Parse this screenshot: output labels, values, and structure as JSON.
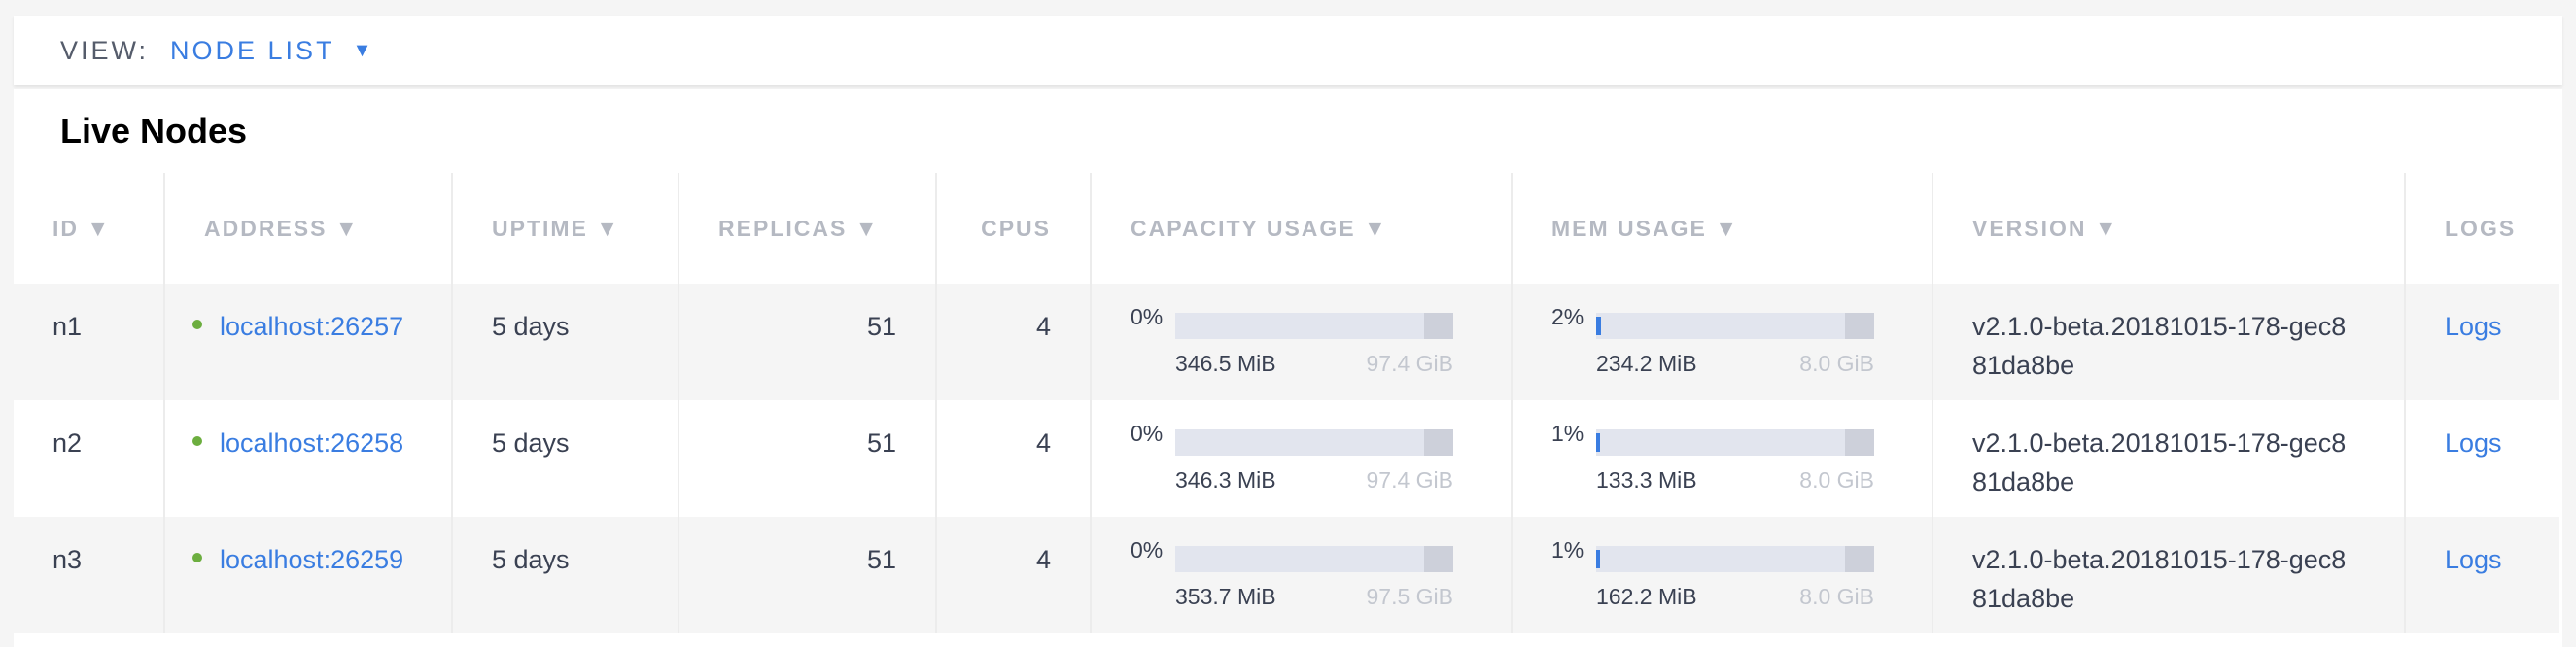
{
  "view": {
    "label": "VIEW:",
    "selected": "NODE LIST"
  },
  "section_title": "Live Nodes",
  "columns": [
    "ID",
    "ADDRESS",
    "UPTIME",
    "REPLICAS",
    "CPUS",
    "CAPACITY USAGE",
    "MEM USAGE",
    "VERSION",
    "LOGS"
  ],
  "sort_indicator": "▼",
  "colors": {
    "accent": "#3a7de1",
    "live": "#6cae3f"
  },
  "rows": [
    {
      "id": "n1",
      "address": "localhost:26257",
      "uptime": "5 days",
      "replicas": "51",
      "cpus": "4",
      "capacity": {
        "pct": "0%",
        "percent": 0,
        "used": "346.5 MiB",
        "total": "97.4 GiB"
      },
      "mem": {
        "pct": "2%",
        "percent": 2,
        "used": "234.2 MiB",
        "total": "8.0 GiB"
      },
      "version": "v2.1.0-beta.20181015-178-gec881da8be",
      "logs": "Logs"
    },
    {
      "id": "n2",
      "address": "localhost:26258",
      "uptime": "5 days",
      "replicas": "51",
      "cpus": "4",
      "capacity": {
        "pct": "0%",
        "percent": 0,
        "used": "346.3 MiB",
        "total": "97.4 GiB"
      },
      "mem": {
        "pct": "1%",
        "percent": 1,
        "used": "133.3 MiB",
        "total": "8.0 GiB"
      },
      "version": "v2.1.0-beta.20181015-178-gec881da8be",
      "logs": "Logs"
    },
    {
      "id": "n3",
      "address": "localhost:26259",
      "uptime": "5 days",
      "replicas": "51",
      "cpus": "4",
      "capacity": {
        "pct": "0%",
        "percent": 0,
        "used": "353.7 MiB",
        "total": "97.5 GiB"
      },
      "mem": {
        "pct": "1%",
        "percent": 1,
        "used": "162.2 MiB",
        "total": "8.0 GiB"
      },
      "version": "v2.1.0-beta.20181015-178-gec881da8be",
      "logs": "Logs"
    }
  ]
}
